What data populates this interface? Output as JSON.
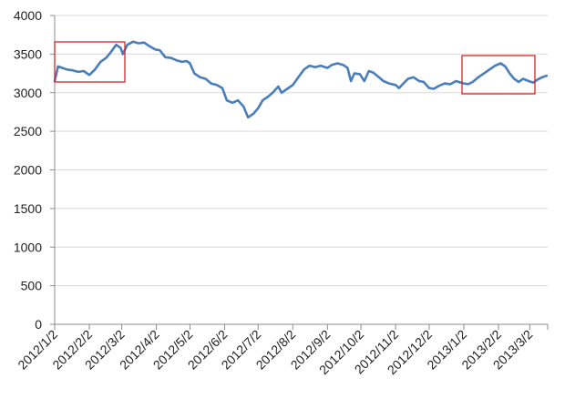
{
  "chart_data": {
    "type": "line",
    "title": "",
    "xlabel": "",
    "ylabel": "",
    "ylim": [
      0,
      4000
    ],
    "y_ticks": [
      "0",
      "500",
      "1000",
      "1500",
      "2000",
      "2500",
      "3000",
      "3500",
      "4000"
    ],
    "x_ticks": [
      "2012/1/2",
      "2012/2/2",
      "2012/3/2",
      "2012/4/2",
      "2012/5/2",
      "2012/6/2",
      "2012/7/2",
      "2012/8/2",
      "2012/9/2",
      "2012/10/2",
      "2012/11/2",
      "2012/12/2",
      "2013/1/2",
      "2013/2/2",
      "2013/3/2"
    ],
    "grid": true,
    "legend": "none",
    "series_color": "#4a7ebb",
    "highlight_color": "#d62728",
    "series": [
      {
        "values": [
          [
            "2012-01-02",
            3150
          ],
          [
            "2012-01-05",
            3340
          ],
          [
            "2012-01-09",
            3320
          ],
          [
            "2012-01-13",
            3300
          ],
          [
            "2012-01-18",
            3290
          ],
          [
            "2012-01-23",
            3270
          ],
          [
            "2012-01-28",
            3280
          ],
          [
            "2012-02-02",
            3230
          ],
          [
            "2012-02-07",
            3300
          ],
          [
            "2012-02-12",
            3400
          ],
          [
            "2012-02-17",
            3450
          ],
          [
            "2012-02-21",
            3520
          ],
          [
            "2012-02-26",
            3620
          ],
          [
            "2012-03-01",
            3580
          ],
          [
            "2012-03-03",
            3500
          ],
          [
            "2012-03-07",
            3620
          ],
          [
            "2012-03-12",
            3660
          ],
          [
            "2012-03-17",
            3640
          ],
          [
            "2012-03-22",
            3650
          ],
          [
            "2012-03-27",
            3600
          ],
          [
            "2012-04-01",
            3560
          ],
          [
            "2012-04-05",
            3550
          ],
          [
            "2012-04-10",
            3460
          ],
          [
            "2012-04-15",
            3450
          ],
          [
            "2012-04-20",
            3420
          ],
          [
            "2012-04-25",
            3400
          ],
          [
            "2012-04-29",
            3410
          ],
          [
            "2012-05-02",
            3380
          ],
          [
            "2012-05-06",
            3250
          ],
          [
            "2012-05-11",
            3200
          ],
          [
            "2012-05-16",
            3180
          ],
          [
            "2012-05-21",
            3120
          ],
          [
            "2012-05-26",
            3100
          ],
          [
            "2012-05-31",
            3060
          ],
          [
            "2012-06-04",
            2900
          ],
          [
            "2012-06-09",
            2870
          ],
          [
            "2012-06-14",
            2900
          ],
          [
            "2012-06-19",
            2820
          ],
          [
            "2012-06-23",
            2680
          ],
          [
            "2012-06-28",
            2730
          ],
          [
            "2012-07-02",
            2800
          ],
          [
            "2012-07-06",
            2900
          ],
          [
            "2012-07-11",
            2950
          ],
          [
            "2012-07-15",
            3000
          ],
          [
            "2012-07-20",
            3080
          ],
          [
            "2012-07-23",
            3000
          ],
          [
            "2012-07-28",
            3050
          ],
          [
            "2012-08-02",
            3100
          ],
          [
            "2012-08-07",
            3200
          ],
          [
            "2012-08-12",
            3300
          ],
          [
            "2012-08-17",
            3350
          ],
          [
            "2012-08-22",
            3330
          ],
          [
            "2012-08-27",
            3350
          ],
          [
            "2012-09-02",
            3320
          ],
          [
            "2012-09-06",
            3360
          ],
          [
            "2012-09-11",
            3380
          ],
          [
            "2012-09-16",
            3360
          ],
          [
            "2012-09-20",
            3320
          ],
          [
            "2012-09-23",
            3150
          ],
          [
            "2012-09-26",
            3250
          ],
          [
            "2012-10-01",
            3240
          ],
          [
            "2012-10-05",
            3150
          ],
          [
            "2012-10-09",
            3280
          ],
          [
            "2012-10-13",
            3260
          ],
          [
            "2012-10-18",
            3200
          ],
          [
            "2012-10-22",
            3150
          ],
          [
            "2012-10-27",
            3120
          ],
          [
            "2012-11-02",
            3100
          ],
          [
            "2012-11-05",
            3060
          ],
          [
            "2012-11-09",
            3120
          ],
          [
            "2012-11-13",
            3180
          ],
          [
            "2012-11-18",
            3200
          ],
          [
            "2012-11-23",
            3150
          ],
          [
            "2012-11-27",
            3140
          ],
          [
            "2012-12-02",
            3060
          ],
          [
            "2012-12-06",
            3050
          ],
          [
            "2012-12-11",
            3090
          ],
          [
            "2012-12-16",
            3120
          ],
          [
            "2012-12-21",
            3110
          ],
          [
            "2012-12-26",
            3150
          ],
          [
            "2013-01-02",
            3120
          ],
          [
            "2013-01-06",
            3110
          ],
          [
            "2013-01-10",
            3140
          ],
          [
            "2013-01-15",
            3200
          ],
          [
            "2013-01-20",
            3250
          ],
          [
            "2013-01-25",
            3300
          ],
          [
            "2013-01-30",
            3350
          ],
          [
            "2013-02-04",
            3380
          ],
          [
            "2013-02-08",
            3340
          ],
          [
            "2013-02-12",
            3250
          ],
          [
            "2013-02-16",
            3180
          ],
          [
            "2013-02-20",
            3140
          ],
          [
            "2013-02-24",
            3180
          ],
          [
            "2013-03-01",
            3150
          ],
          [
            "2013-03-05",
            3130
          ],
          [
            "2013-03-09",
            3170
          ],
          [
            "2013-03-13",
            3200
          ],
          [
            "2013-03-17",
            3220
          ]
        ]
      }
    ]
  }
}
